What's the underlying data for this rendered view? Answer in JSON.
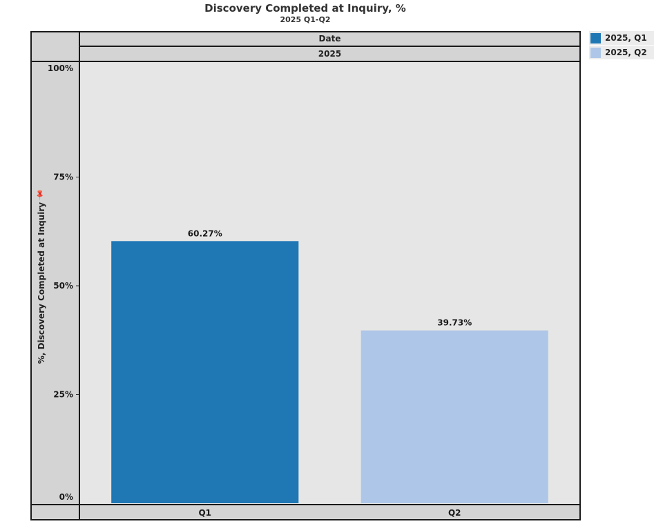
{
  "chart_data": {
    "type": "bar",
    "title": "Discovery Completed at Inquiry, %",
    "subtitle": "2025 Q1-Q2",
    "column_header": "Date",
    "column_subheader": "2025",
    "categories": [
      "Q1",
      "Q2"
    ],
    "values": [
      60.27,
      39.73
    ],
    "data_labels": [
      "60.27%",
      "39.73%"
    ],
    "colors": [
      "#1f77b4",
      "#aec7e8"
    ],
    "ylabel": "%, Discovery Completed at Inquiry",
    "ylim": [
      0,
      100
    ],
    "yticks": [
      {
        "value": 0,
        "label": "0%"
      },
      {
        "value": 25,
        "label": "25%"
      },
      {
        "value": 50,
        "label": "50%"
      },
      {
        "value": 75,
        "label": "75%"
      },
      {
        "value": 100,
        "label": "100%"
      }
    ],
    "legend": {
      "position": "right",
      "items": [
        {
          "label": "2025, Q1",
          "color": "#1f77b4"
        },
        {
          "label": "2025, Q2",
          "color": "#aec7e8"
        }
      ]
    },
    "grid": false
  },
  "icons": {
    "axis_pin": "pin-icon"
  }
}
